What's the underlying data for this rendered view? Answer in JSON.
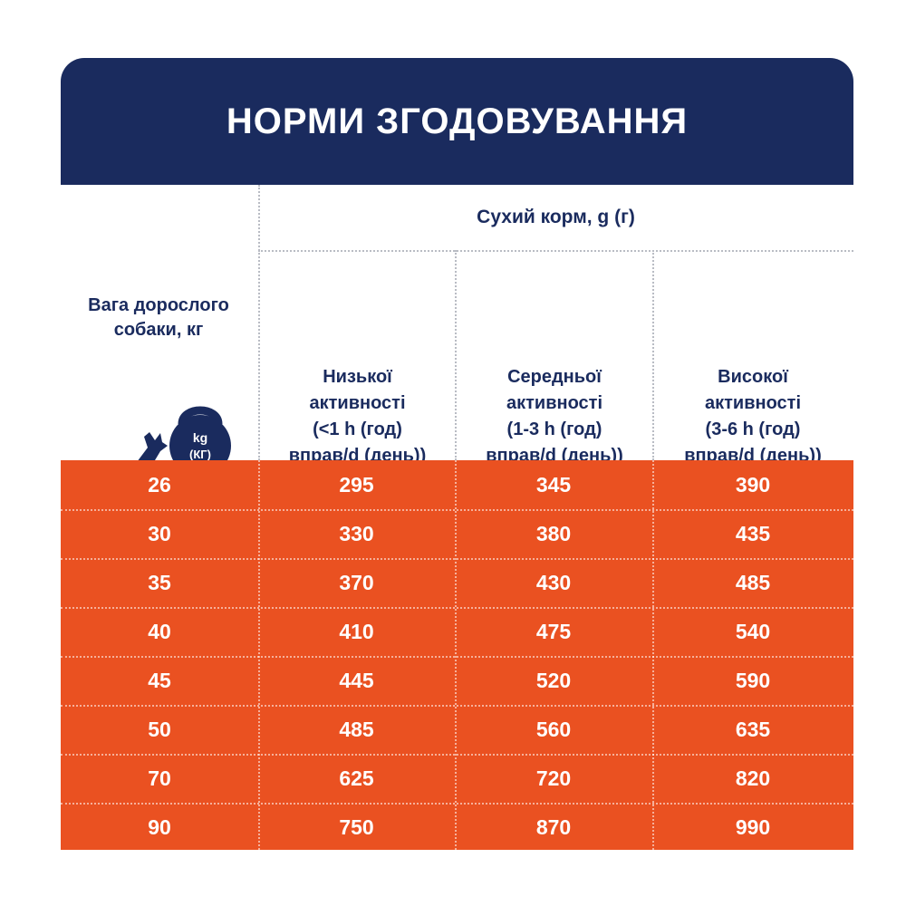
{
  "title": "НОРМИ ЗГОДОВУВАННЯ",
  "colors": {
    "navy": "#1a2b5e",
    "orange": "#ea5121"
  },
  "header": {
    "weight_label": "Вага дорослого собаки, кг",
    "dry_food_label": "Сухий корм, g (г)",
    "icon": {
      "name": "dog-weight-icon",
      "kettlebell_line1": "kg",
      "kettlebell_line2": "(КГ)"
    },
    "columns": [
      {
        "line1": "Низької",
        "line2": "активності",
        "line3": "(<1 h (год)",
        "line4": "вправ/d (день))"
      },
      {
        "line1": "Середньої",
        "line2": "активності",
        "line3": "(1-3 h (год)",
        "line4": "вправ/d (день))"
      },
      {
        "line1": "Високої",
        "line2": "активності",
        "line3": "(3-6 h (год)",
        "line4": "вправ/d (день))"
      }
    ]
  },
  "rows": [
    {
      "weight": "26",
      "low": "295",
      "medium": "345",
      "high": "390"
    },
    {
      "weight": "30",
      "low": "330",
      "medium": "380",
      "high": "435"
    },
    {
      "weight": "35",
      "low": "370",
      "medium": "430",
      "high": "485"
    },
    {
      "weight": "40",
      "low": "410",
      "medium": "475",
      "high": "540"
    },
    {
      "weight": "45",
      "low": "445",
      "medium": "520",
      "high": "590"
    },
    {
      "weight": "50",
      "low": "485",
      "medium": "560",
      "high": "635"
    },
    {
      "weight": "70",
      "low": "625",
      "medium": "720",
      "high": "820"
    },
    {
      "weight": "90",
      "low": "750",
      "medium": "870",
      "high": "990"
    }
  ]
}
